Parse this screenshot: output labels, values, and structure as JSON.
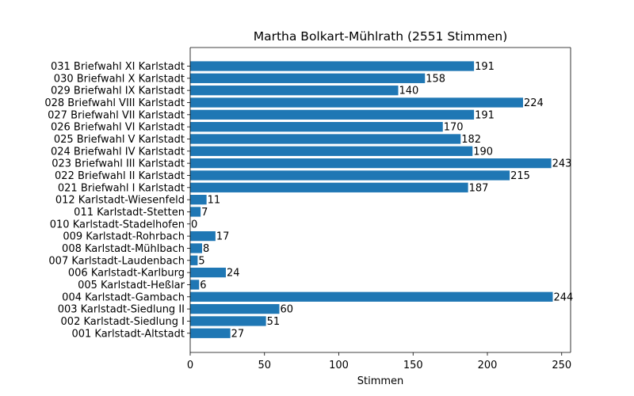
{
  "chart_data": {
    "type": "bar",
    "orientation": "horizontal",
    "title": "Martha Bolkart-Mühlrath (2551 Stimmen)",
    "xlabel": "Stimmen",
    "ylabel": "",
    "xlim": [
      0,
      256
    ],
    "xticks": [
      0,
      50,
      100,
      150,
      200,
      250
    ],
    "grid": false,
    "bar_color": "#1f77b4",
    "categories": [
      "031 Briefwahl XI Karlstadt",
      "030 Briefwahl X Karlstadt",
      "029 Briefwahl IX Karlstadt",
      "028 Briefwahl VIII Karlstadt",
      "027 Briefwahl VII Karlstadt",
      "026 Briefwahl VI Karlstadt",
      "025 Briefwahl V Karlstadt",
      "024 Briefwahl IV Karlstadt",
      "023 Briefwahl III Karlstadt",
      "022 Briefwahl II Karlstadt",
      "021 Briefwahl I Karlstadt",
      "012 Karlstadt-Wiesenfeld",
      "011 Karlstadt-Stetten",
      "010 Karlstadt-Stadelhofen",
      "009 Karlstadt-Rohrbach",
      "008 Karlstadt-Mühlbach",
      "007 Karlstadt-Laudenbach",
      "006 Karlstadt-Karlburg",
      "005 Karlstadt-Heßlar",
      "004 Karlstadt-Gambach",
      "003 Karlstadt-Siedlung II",
      "002 Karlstadt-Siedlung I",
      "001 Karlstadt-Altstadt"
    ],
    "values": [
      191,
      158,
      140,
      224,
      191,
      170,
      182,
      190,
      243,
      215,
      187,
      11,
      7,
      0,
      17,
      8,
      5,
      24,
      6,
      244,
      60,
      51,
      27
    ]
  }
}
